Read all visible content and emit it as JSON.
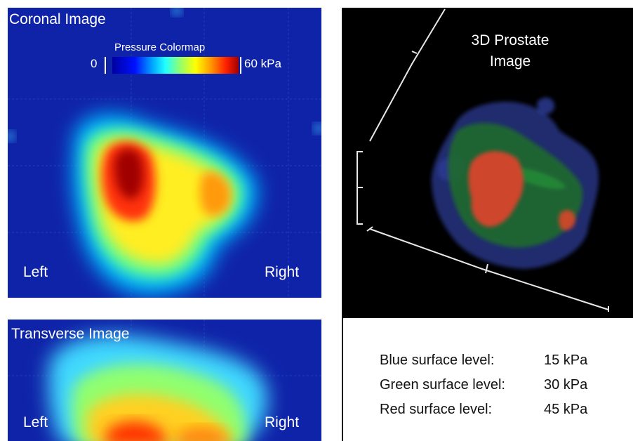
{
  "coronal": {
    "title": "Coronal Image",
    "left_label": "Left",
    "right_label": "Right"
  },
  "colormap": {
    "title": "Pressure Colormap",
    "min_label": "0",
    "max_label": "60 kPa",
    "stops": [
      "#0000a0",
      "#0010ff",
      "#00a8ff",
      "#20ffff",
      "#9fff60",
      "#ffff00",
      "#ff9900",
      "#ff2000",
      "#a00000"
    ]
  },
  "transverse": {
    "title": "Transverse Image",
    "left_label": "Left",
    "right_label": "Right"
  },
  "render3d": {
    "title_line1": "3D Prostate",
    "title_line2": "Image"
  },
  "surface_levels": [
    {
      "name": "Blue surface level:",
      "value": "15 kPa",
      "color": "#3050c0"
    },
    {
      "name": "Green surface level:",
      "value": "30 kPa",
      "color": "#30a040"
    },
    {
      "name": "Red surface level:",
      "value": "45 kPa",
      "color": "#e04020"
    }
  ]
}
